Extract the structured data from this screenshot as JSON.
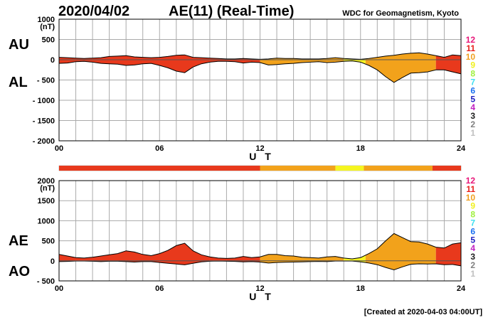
{
  "header": {
    "date": "2020/04/02",
    "title": "AE(11) (Real-Time)",
    "source": "WDC for Geomagnetism, Kyoto"
  },
  "footer": {
    "created": "[Created at 2020-04-03 04:00UT]"
  },
  "legend": {
    "items": [
      {
        "label": "12",
        "color": "#e8177a"
      },
      {
        "label": "11",
        "color": "#e8201a"
      },
      {
        "label": "10",
        "color": "#f0a020"
      },
      {
        "label": "9",
        "color": "#f0f020"
      },
      {
        "label": "8",
        "color": "#a0f040"
      },
      {
        "label": "7",
        "color": "#40e0f0"
      },
      {
        "label": "6",
        "color": "#1a70f0"
      },
      {
        "label": "5",
        "color": "#2020c0"
      },
      {
        "label": "4",
        "color": "#c020c0"
      },
      {
        "label": "3",
        "color": "#202020"
      },
      {
        "label": "2",
        "color": "#808080"
      },
      {
        "label": "1",
        "color": "#c0c0c0"
      }
    ]
  },
  "colors": {
    "station_11": "#e8391c",
    "station_10": "#f2a21b",
    "station_9": "#f5f520",
    "grid": "#aaaaaa",
    "line": "#000000"
  },
  "chart_data": [
    {
      "type": "area",
      "title": "AE(11) (Real-Time)",
      "upper_label": "AU",
      "lower_label": "AL",
      "ylabel": "(nT)",
      "xlabel": "U T",
      "xlim": [
        0,
        24
      ],
      "ylim": [
        -2000,
        1000
      ],
      "yticks": [
        1000,
        500,
        0,
        -500,
        -1000,
        -1500,
        -2000
      ],
      "ytick_labels": [
        "1000",
        "500",
        "0",
        "- 500",
        "- 1000",
        "- 1500",
        "- 2000"
      ],
      "xticks": [
        0,
        6,
        12,
        18,
        24
      ],
      "xtick_labels": [
        "00",
        "06",
        "12",
        "18",
        "24"
      ],
      "x": [
        0,
        0.5,
        1,
        1.5,
        2,
        2.5,
        3,
        3.5,
        4,
        4.5,
        5,
        5.5,
        6,
        6.5,
        7,
        7.5,
        8,
        8.5,
        9,
        9.5,
        10,
        10.5,
        11,
        11.5,
        12,
        12.5,
        13,
        13.5,
        14,
        14.5,
        15,
        15.5,
        16,
        16.5,
        17,
        17.5,
        18,
        18.5,
        19,
        19.5,
        20,
        20.5,
        21,
        21.5,
        22,
        22.5,
        23,
        23.5,
        24
      ],
      "series": [
        {
          "name": "AU",
          "values": [
            60,
            50,
            40,
            30,
            40,
            50,
            80,
            90,
            100,
            70,
            60,
            50,
            60,
            80,
            110,
            120,
            60,
            50,
            40,
            30,
            20,
            20,
            30,
            20,
            10,
            20,
            40,
            30,
            30,
            20,
            20,
            20,
            30,
            50,
            30,
            20,
            10,
            30,
            60,
            90,
            110,
            140,
            160,
            170,
            140,
            100,
            60,
            120,
            100
          ]
        },
        {
          "name": "AL",
          "values": [
            -90,
            -80,
            -50,
            -40,
            -60,
            -90,
            -100,
            -110,
            -140,
            -130,
            -100,
            -90,
            -140,
            -200,
            -280,
            -320,
            -180,
            -100,
            -60,
            -40,
            -40,
            -50,
            -80,
            -60,
            -70,
            -130,
            -120,
            -100,
            -90,
            -70,
            -60,
            -50,
            -70,
            -60,
            -40,
            -30,
            -60,
            -140,
            -250,
            -420,
            -560,
            -440,
            -330,
            -320,
            -300,
            -250,
            -250,
            -300,
            -350
          ]
        }
      ]
    },
    {
      "type": "area",
      "title": "AE(11) (Real-Time)",
      "upper_label": "AE",
      "lower_label": "AO",
      "ylabel": "(nT)",
      "xlabel": "U T",
      "xlim": [
        0,
        24
      ],
      "ylim": [
        -500,
        2000
      ],
      "yticks": [
        2000,
        1500,
        1000,
        500,
        0,
        -500
      ],
      "ytick_labels": [
        "2000",
        "1500",
        "1000",
        "500",
        "0",
        "- 500"
      ],
      "xticks": [
        0,
        6,
        12,
        18,
        24
      ],
      "xtick_labels": [
        "00",
        "06",
        "12",
        "18",
        "24"
      ],
      "x": [
        0,
        0.5,
        1,
        1.5,
        2,
        2.5,
        3,
        3.5,
        4,
        4.5,
        5,
        5.5,
        6,
        6.5,
        7,
        7.5,
        8,
        8.5,
        9,
        9.5,
        10,
        10.5,
        11,
        11.5,
        12,
        12.5,
        13,
        13.5,
        14,
        14.5,
        15,
        15.5,
        16,
        16.5,
        17,
        17.5,
        18,
        18.5,
        19,
        19.5,
        20,
        20.5,
        21,
        21.5,
        22,
        22.5,
        23,
        23.5,
        24
      ],
      "series": [
        {
          "name": "AE",
          "values": [
            160,
            120,
            80,
            70,
            90,
            120,
            150,
            180,
            250,
            220,
            160,
            130,
            180,
            260,
            380,
            440,
            250,
            150,
            100,
            70,
            60,
            70,
            110,
            80,
            100,
            160,
            160,
            130,
            120,
            90,
            80,
            70,
            100,
            110,
            70,
            50,
            80,
            180,
            300,
            500,
            680,
            580,
            480,
            470,
            420,
            340,
            320,
            420,
            450
          ]
        },
        {
          "name": "AO",
          "values": [
            -20,
            -15,
            -5,
            -5,
            -10,
            -20,
            -10,
            -10,
            -20,
            -30,
            -20,
            -20,
            -40,
            -60,
            -80,
            -100,
            -60,
            -25,
            -10,
            -5,
            -10,
            -15,
            -25,
            -20,
            -30,
            -55,
            -40,
            -35,
            -30,
            -25,
            -20,
            -15,
            -20,
            -5,
            -5,
            -5,
            -25,
            -55,
            -95,
            -165,
            -225,
            -150,
            -85,
            -75,
            -80,
            -75,
            -95,
            -90,
            -125
          ]
        }
      ]
    }
  ],
  "color_strip": [
    {
      "from": 0,
      "to": 12,
      "color": "#e8391c"
    },
    {
      "from": 12,
      "to": 16.5,
      "color": "#f2a21b"
    },
    {
      "from": 16.5,
      "to": 18.2,
      "color": "#f5f520"
    },
    {
      "from": 18.2,
      "to": 22.3,
      "color": "#f2a21b"
    },
    {
      "from": 22.3,
      "to": 24,
      "color": "#e8391c"
    }
  ],
  "segments": [
    {
      "from": 0,
      "to": 12,
      "color": "#e8391c"
    },
    {
      "from": 12,
      "to": 17,
      "color": "#f2a21b"
    },
    {
      "from": 17,
      "to": 18.3,
      "color": "#f5f520"
    },
    {
      "from": 18.3,
      "to": 22.5,
      "color": "#f2a21b"
    },
    {
      "from": 22.5,
      "to": 24,
      "color": "#e8391c"
    }
  ]
}
